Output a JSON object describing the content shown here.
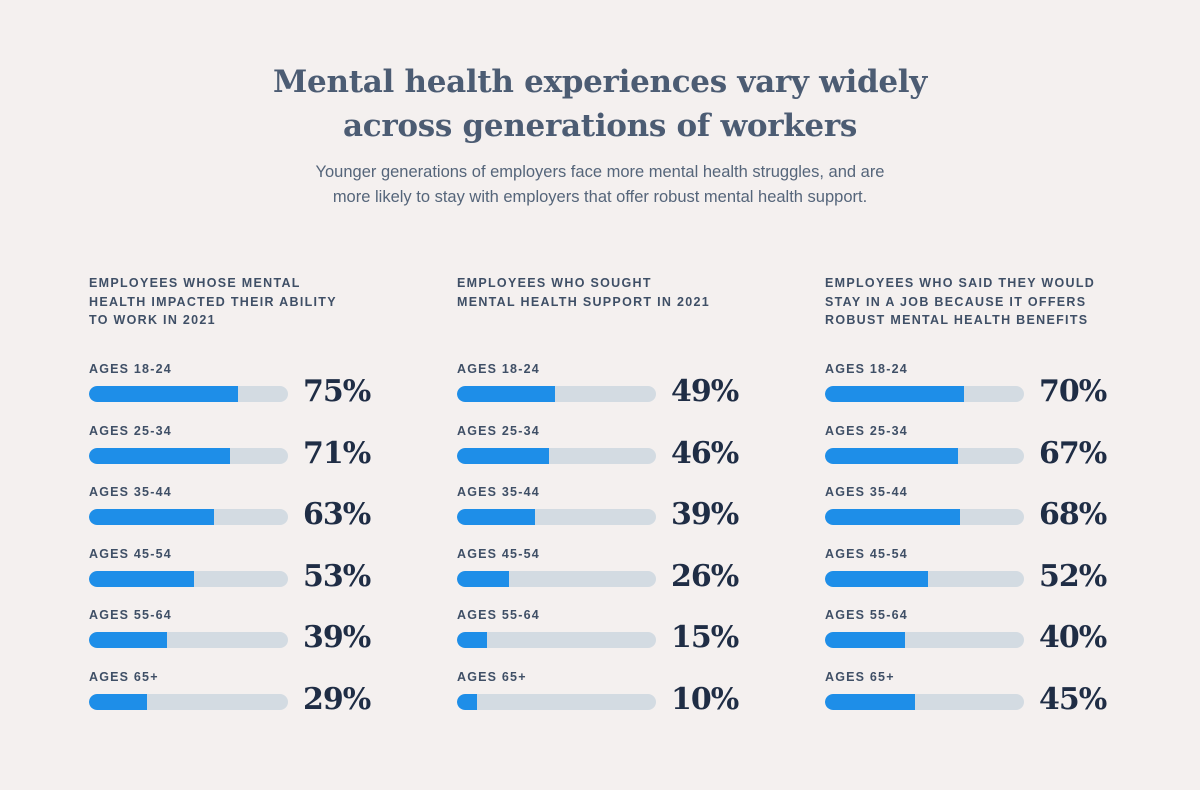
{
  "header": {
    "title_line1": "Mental health experiences vary widely",
    "title_line2": "across generations of workers",
    "subtitle_line1": "Younger generations of employers face more mental health struggles, and are",
    "subtitle_line2": "more likely to stay with employers that offer robust mental health support."
  },
  "colors": {
    "bar_fill": "#1e8ee8",
    "bar_track": "#d3dbe2",
    "background": "#f4f0ef"
  },
  "chart_data": [
    {
      "type": "bar",
      "title": "EMPLOYEES WHOSE MENTAL\nHEALTH IMPACTED THEIR ABILITY\nTO WORK IN 2021",
      "categories": [
        "AGES 18-24",
        "AGES 25-34",
        "AGES 35-44",
        "AGES 45-54",
        "AGES 55-64",
        "AGES 65+"
      ],
      "values": [
        75,
        71,
        63,
        53,
        39,
        29
      ],
      "labels": [
        "75%",
        "71%",
        "63%",
        "53%",
        "39%",
        "29%"
      ],
      "ylim": [
        0,
        100
      ]
    },
    {
      "type": "bar",
      "title": "EMPLOYEES WHO SOUGHT\nMENTAL HEALTH SUPPORT IN 2021",
      "categories": [
        "AGES 18-24",
        "AGES 25-34",
        "AGES 35-44",
        "AGES 45-54",
        "AGES 55-64",
        "AGES 65+"
      ],
      "values": [
        49,
        46,
        39,
        26,
        15,
        10
      ],
      "labels": [
        "49%",
        "46%",
        "39%",
        "26%",
        "15%",
        "10%"
      ],
      "ylim": [
        0,
        100
      ]
    },
    {
      "type": "bar",
      "title": "EMPLOYEES WHO SAID THEY WOULD\nSTAY IN A JOB BECAUSE IT OFFERS\nROBUST MENTAL HEALTH BENEFITS",
      "categories": [
        "AGES 18-24",
        "AGES 25-34",
        "AGES 35-44",
        "AGES 45-54",
        "AGES 55-64",
        "AGES 65+"
      ],
      "values": [
        70,
        67,
        68,
        52,
        40,
        45
      ],
      "labels": [
        "70%",
        "67%",
        "68%",
        "52%",
        "40%",
        "45%"
      ],
      "ylim": [
        0,
        100
      ]
    }
  ]
}
